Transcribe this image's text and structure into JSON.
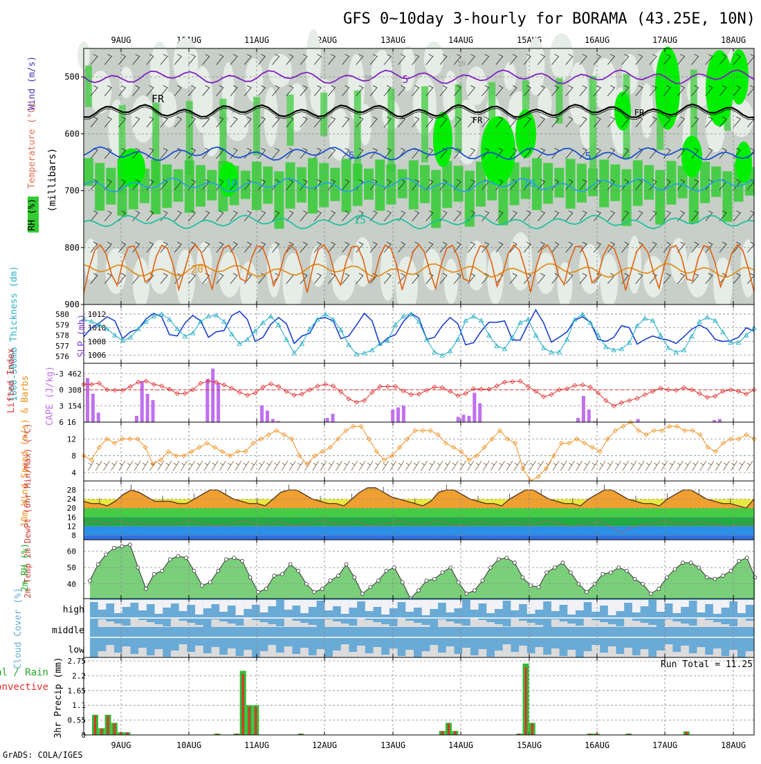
{
  "title": "GFS 0~10day 3-hourly for BORAMA (43.25E, 10N)",
  "credit": "GrADS: COLA/IGES",
  "dates": [
    "9AUG",
    "10AUG",
    "11AUG",
    "12AUG",
    "13AUG",
    "14AUG",
    "15AUG",
    "16AUG",
    "17AUG",
    "18AUG"
  ],
  "colors": {
    "rh_green": "#33cc33",
    "rh_bright": "#00ee00",
    "gray_mid": "#c8cfc8",
    "gray_light": "#e6ece6",
    "slp": "#1a3fcf",
    "thick": "#2ab0c8",
    "li": "#e03030",
    "cape": "#c070f0",
    "wind": "#f09020",
    "cloud": "#6aaad6",
    "rain_green": "#33bb33",
    "rain_red": "#e03030"
  },
  "chart_data": [
    {
      "type": "heatmap",
      "id": "profile",
      "left_labels": [
        "RH (%)",
        "Temperature (°C)",
        "Wind (m/s)"
      ],
      "ylabel": "(millibars)",
      "y_ticks": [
        500,
        600,
        700,
        800,
        900
      ],
      "ylim": [
        450,
        900
      ],
      "isotherms": [
        {
          "label": "5",
          "level": 500
        },
        {
          "label": "FR",
          "level": 560
        },
        {
          "label": "5",
          "level": 635
        },
        {
          "label": "10",
          "level": 690
        },
        {
          "label": "15",
          "level": 755
        },
        {
          "label": "20",
          "level": 840
        }
      ],
      "rh_contour_labels": [
        "50",
        "30",
        "50"
      ]
    },
    {
      "type": "line",
      "id": "slp_thickness",
      "ylabel_left": "1000-500mb Thickness (dm)",
      "ylabel_right": "SLP (mb)",
      "thickness_ticks": [
        576,
        577,
        578,
        579,
        580
      ],
      "slp_ticks": [
        1006,
        1008,
        1010,
        1012
      ],
      "slp_lim": [
        1004.8,
        1013.4
      ],
      "series": [
        {
          "name": "SLP",
          "values": [
            1008.7,
            1010.0,
            1010.7,
            1011.6,
            1011.0,
            1008.4,
            1009.4,
            1009.8,
            1011.3,
            1012.1,
            1011.6,
            1009.0,
            1008.8,
            1010.7,
            1011.8,
            1011.0,
            1008.6,
            1009.4,
            1009.6,
            1011.8,
            1012.4,
            1011.2,
            1008.0,
            1008.6,
            1010.5,
            1011.5,
            1010.6,
            1007.7,
            1008.8,
            1009.2,
            1011.3,
            1011.5,
            1011.0,
            1008.4,
            1008.8,
            1010.4,
            1012.1,
            1011.0,
            1007.5,
            1008.5,
            1009.0,
            1010.9,
            1012.1,
            1011.4,
            1008.3,
            1008.6,
            1010.3,
            1011.5,
            1010.6,
            1007.5,
            1007.8,
            1009.5,
            1010.8,
            1010.8,
            1011.0,
            1008.2,
            1008.2,
            1010.5,
            1012.6,
            1010.7,
            1007.9,
            1008.6,
            1009.4,
            1011.1,
            1011.6,
            1010.8,
            1008.3,
            1008.0,
            1008.6,
            1010.3,
            1010.0,
            1007.6,
            1008.3,
            1008.8,
            1008.4,
            1008.2,
            1007.7,
            1008.7,
            1009.8,
            1010.4,
            1009.8,
            1008.3,
            1008.0,
            1008.1,
            1008.6,
            1010.0,
            1009.5
          ]
        },
        {
          "name": "Thickness",
          "values": [
            579.5,
            579.3,
            579.0,
            578.6,
            578.0,
            577.5,
            577.8,
            578.6,
            579.3,
            579.8,
            580.0,
            579.5,
            578.6,
            577.9,
            578.2,
            579.3,
            579.8,
            579.9,
            579.3,
            578.1,
            577.2,
            577.6,
            578.4,
            579.2,
            579.8,
            579.0,
            577.6,
            576.3,
            577.2,
            578.6,
            579.5,
            580.0,
            579.5,
            578.5,
            577.1,
            576.2,
            576.3,
            576.6,
            577.2,
            577.5,
            579.0,
            579.8,
            580.0,
            579.3,
            577.6,
            576.4,
            576.1,
            576.5,
            577.6,
            579.4,
            579.8,
            579.4,
            578.0,
            577.0,
            576.7,
            577.8,
            579.2,
            579.5,
            578.0,
            576.8,
            576.4,
            576.4,
            577.6,
            579.5,
            580.0,
            579.2,
            578.0,
            576.9,
            576.6,
            576.7,
            577.3,
            578.9,
            579.6,
            579.4,
            578.0,
            576.8,
            576.4,
            576.6,
            577.9,
            579.3,
            579.7,
            579.4,
            578.3,
            577.3,
            577.3,
            578.0,
            578.7
          ]
        }
      ]
    },
    {
      "type": "bar",
      "id": "li_cape",
      "ylabel_left": "Lifted Index",
      "ylabel_right": "CAPE (J/kg)",
      "li_ticks": [
        "-3",
        "0",
        "3",
        "6"
      ],
      "cape_ticks": [
        154,
        308,
        462
      ],
      "li_lim": [
        -4.9,
        6
      ],
      "cape_lim": [
        0,
        560
      ],
      "li_values": [
        -1.0,
        -1.0,
        -1.2,
        0.0,
        0.1,
        0.1,
        -0.6,
        -1.4,
        -1.6,
        -1.0,
        -0.7,
        -0.1,
        0.7,
        0.7,
        0.0,
        -1.2,
        -1.6,
        -1.4,
        -0.9,
        -0.3,
        0.5,
        1.0,
        0.6,
        -0.5,
        -1.1,
        -0.6,
        0.3,
        1.0,
        0.8,
        0.0,
        -0.7,
        -1.0,
        -0.7,
        0.4,
        1.7,
        2.3,
        2.0,
        0.5,
        -0.6,
        -0.6,
        -0.6,
        0.2,
        0.9,
        0.8,
        0.1,
        -0.5,
        -0.4,
        0.3,
        1.1,
        0.7,
        -0.2,
        -0.1,
        -0.1,
        -0.7,
        -1.4,
        -1.5,
        -1.6,
        -0.6,
        0.3,
        1.3,
        0.9,
        0.0,
        -0.2,
        -0.8,
        -0.9,
        -0.5,
        0.6,
        2.0,
        3.0,
        2.4,
        2.0,
        1.6,
        0.9,
        0.3,
        -0.3,
        0.0,
        0.1,
        -0.4,
        0.0,
        0.7,
        1.4,
        1.2,
        0.3,
        0.0,
        0.3,
        0.8,
        0.0
      ],
      "cape_values": [
        420,
        270,
        90,
        0,
        0,
        0,
        0,
        0,
        0,
        60,
        390,
        270,
        210,
        0,
        0,
        0,
        0,
        0,
        0,
        0,
        0,
        0,
        410,
        510,
        370,
        0,
        0,
        0,
        0,
        0,
        0,
        0,
        160,
        110,
        30,
        10,
        0,
        0,
        0,
        0,
        0,
        0,
        0,
        0,
        40,
        80,
        0,
        0,
        0,
        0,
        0,
        0,
        0,
        0,
        0,
        0,
        120,
        140,
        160,
        0,
        0,
        0,
        0,
        0,
        0,
        0,
        0,
        0,
        50,
        70,
        60,
        280,
        180,
        0,
        0,
        0,
        0,
        0,
        0,
        0,
        0,
        0,
        0,
        0,
        0,
        0,
        0,
        0,
        0,
        0,
        40,
        250,
        120,
        10,
        0,
        0,
        0,
        0,
        0,
        0,
        0,
        30,
        0,
        0,
        0,
        0,
        0,
        0,
        0,
        0,
        0,
        0,
        0,
        0,
        0,
        20,
        30,
        0,
        0,
        0,
        0,
        0,
        0
      ]
    },
    {
      "type": "line",
      "id": "wind10m",
      "ylabel": "10m Wind Speed (m/s) & Barbs",
      "y_ticks": [
        4,
        8,
        12,
        16
      ],
      "ylim": [
        2,
        16
      ],
      "values": [
        8,
        7,
        10,
        12,
        11,
        12,
        12,
        12,
        10,
        6,
        7,
        9,
        8,
        8,
        9,
        10,
        11,
        10,
        9,
        8,
        9,
        9,
        11,
        12,
        13,
        14,
        13,
        12,
        8,
        6,
        8,
        9,
        10,
        12,
        14,
        15,
        15,
        12,
        9,
        7,
        8,
        10,
        12,
        14,
        14,
        14,
        13,
        11,
        10,
        9,
        7,
        8,
        10,
        12,
        14,
        12,
        11,
        5,
        2,
        3,
        5,
        8,
        11,
        11,
        12,
        11,
        10,
        9,
        12,
        14,
        15,
        16,
        14,
        13,
        14,
        14,
        15,
        15,
        14,
        14,
        13,
        10,
        9,
        11,
        12,
        12,
        13,
        12
      ]
    },
    {
      "type": "area",
      "id": "temp2m",
      "ylabel": "2m Temp 2m DewPt (6hr Min/Max) (°C)",
      "y_ticks": [
        8,
        12,
        16,
        20,
        24,
        28
      ],
      "ylim": [
        6,
        32
      ],
      "temp_values": [
        23,
        22,
        22,
        21,
        23,
        26,
        28,
        27,
        25,
        23,
        23,
        23,
        22,
        22,
        24,
        26,
        28,
        28,
        26,
        24,
        23,
        22,
        22,
        21,
        24,
        27,
        28,
        28,
        26,
        24,
        23,
        22,
        22,
        21,
        24,
        27,
        29,
        29,
        27,
        25,
        24,
        23,
        22,
        21,
        23,
        27,
        28,
        28,
        26,
        24,
        23,
        22,
        22,
        21,
        24,
        26,
        28,
        28,
        26,
        24,
        23,
        22,
        22,
        21,
        24,
        26,
        28,
        28,
        26,
        24,
        23,
        22,
        22,
        21,
        24,
        26,
        28,
        28,
        26,
        24,
        23,
        22,
        22,
        21,
        20,
        24
      ],
      "dewpt_values": [
        13,
        14,
        14,
        13,
        14,
        14,
        13,
        14,
        13,
        13,
        13,
        13,
        13,
        14,
        14,
        13,
        13,
        12,
        13,
        13,
        14,
        14,
        13,
        13,
        13,
        14,
        13,
        12,
        13,
        13,
        14,
        14,
        13,
        13,
        13,
        14,
        13,
        12,
        13,
        13,
        14,
        14,
        13,
        13,
        13,
        14,
        14,
        13,
        12,
        13,
        13,
        14,
        13,
        13,
        13,
        14,
        13,
        13,
        13,
        14,
        14,
        13,
        12,
        12,
        13,
        13,
        14,
        13,
        11,
        9,
        11,
        12,
        13,
        13,
        14,
        14,
        13,
        13,
        13,
        14,
        13,
        13,
        12,
        12,
        13,
        13,
        13
      ]
    },
    {
      "type": "area",
      "id": "rh2m",
      "ylabel": "2m RH (%)",
      "y_ticks": [
        40,
        50,
        60
      ],
      "ylim": [
        31,
        67
      ],
      "values": [
        42,
        52,
        58,
        62,
        63,
        64,
        50,
        37,
        46,
        48,
        55,
        57,
        56,
        48,
        39,
        41,
        48,
        55,
        56,
        54,
        44,
        35,
        37,
        45,
        46,
        52,
        48,
        40,
        35,
        37,
        42,
        45,
        52,
        44,
        34,
        38,
        42,
        48,
        50,
        41,
        31,
        36,
        42,
        43,
        47,
        50,
        41,
        34,
        36,
        42,
        50,
        55,
        56,
        53,
        44,
        39,
        38,
        47,
        50,
        53,
        47,
        40,
        35,
        40,
        46,
        47,
        50,
        48,
        43,
        40,
        34,
        37,
        44,
        49,
        53,
        53,
        50,
        44,
        43,
        45,
        48,
        54,
        56,
        44
      ]
    },
    {
      "type": "heatmap",
      "id": "cloud",
      "ylabel": "Cloud Cover (%)",
      "rows": [
        "high",
        "middle",
        "low"
      ]
    },
    {
      "type": "bar",
      "id": "precip",
      "ylabel_left": "Total / Rain Convective",
      "ylabel": "3hr Precip (mm)",
      "run_total_label": "Run Total = 11.25",
      "y_ticks": [
        "0",
        "0.55",
        "1.1",
        "1.65",
        "2.2",
        "2.75"
      ],
      "ylim": [
        0,
        2.75
      ],
      "values": [
        0.75,
        0.25,
        0.75,
        0.45,
        0.1,
        0.1,
        0,
        0,
        0,
        0,
        0,
        0,
        0,
        0,
        0,
        0,
        0,
        0,
        0,
        0.05,
        0,
        0,
        0.05,
        2.38,
        1.1,
        1.1,
        0,
        0,
        0,
        0,
        0,
        0,
        0.05,
        0,
        0,
        0,
        0,
        0,
        0,
        0,
        0,
        0,
        0,
        0,
        0,
        0,
        0,
        0,
        0,
        0,
        0,
        0,
        0,
        0,
        0.15,
        0.45,
        0.15,
        0,
        0,
        0,
        0,
        0,
        0,
        0,
        0,
        0,
        0.05,
        2.65,
        0.45,
        0,
        0,
        0,
        0,
        0,
        0,
        0,
        0,
        0.05,
        0.05,
        0,
        0,
        0,
        0,
        0.05,
        0,
        0,
        0,
        0,
        0,
        0,
        0,
        0,
        0.13,
        0,
        0,
        0,
        0,
        0,
        0,
        0,
        0,
        0,
        0
      ]
    }
  ]
}
